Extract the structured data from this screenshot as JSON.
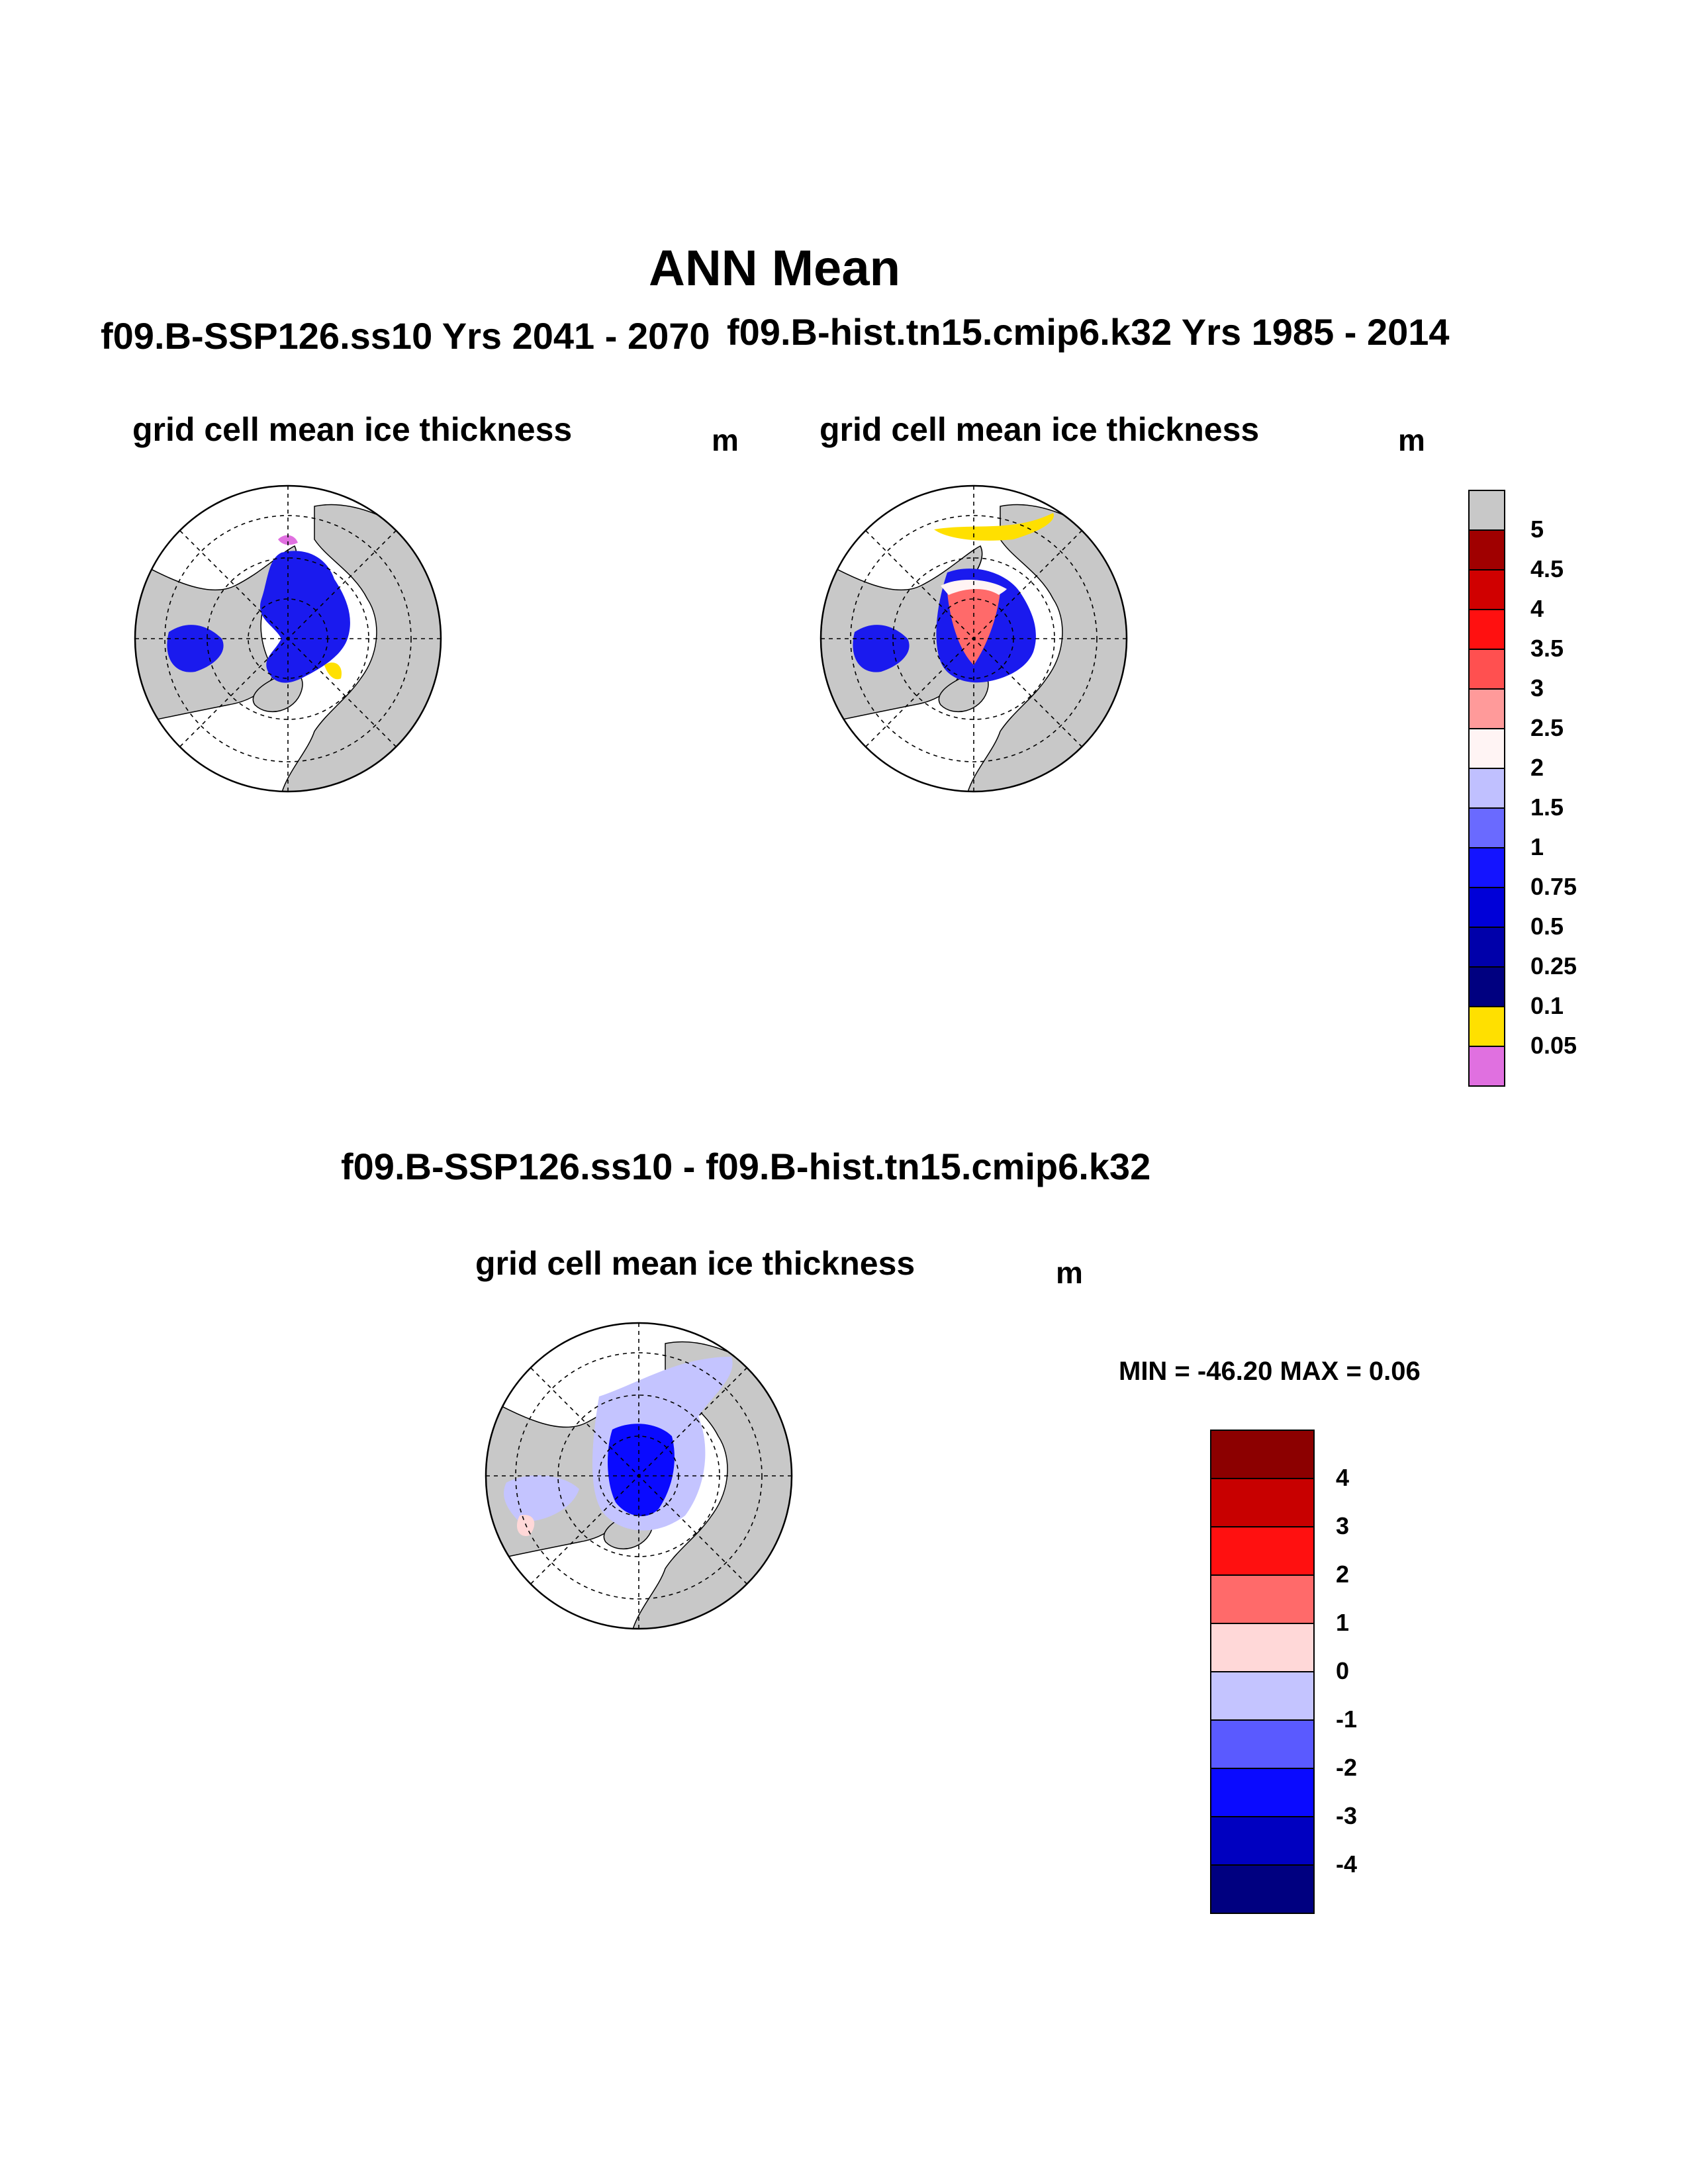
{
  "figure": {
    "title": "ANN Mean",
    "panels": [
      {
        "case": "f09.B-SSP126.ss10  Yrs 2041 - 2070",
        "variable": "grid cell mean ice thickness",
        "units": "m"
      },
      {
        "case": "f09.B-hist.tn15.cmip6.k32  Yrs 1985 - 2014",
        "variable": "grid cell mean ice thickness",
        "units": "m"
      },
      {
        "case": "f09.B-SSP126.ss10 - f09.B-hist.tn15.cmip6.k32",
        "variable": "grid cell mean ice thickness",
        "units": "m",
        "minmax": "MIN = -46.20 MAX =   0.06"
      }
    ]
  },
  "colorbars": {
    "top": {
      "labels": [
        "5",
        "4.5",
        "4",
        "3.5",
        "3",
        "2.5",
        "2",
        "1.5",
        "1",
        "0.75",
        "0.5",
        "0.25",
        "0.1",
        "0.05"
      ],
      "colors": [
        "#c8c8c8",
        "#a00000",
        "#d00000",
        "#ff1010",
        "#ff5050",
        "#ff9a9a",
        "#fff4f4",
        "#c0c0ff",
        "#6a6aff",
        "#1414ff",
        "#0000d8",
        "#0000aa",
        "#000080",
        "#ffe000",
        "#e070e0"
      ]
    },
    "bottom": {
      "labels": [
        "4",
        "3",
        "2",
        "1",
        "0",
        "-1",
        "-2",
        "-3",
        "-4"
      ],
      "colors": [
        "#8c0000",
        "#c80000",
        "#ff1010",
        "#ff6a6a",
        "#ffd8d8",
        "#c4c4ff",
        "#5a5aff",
        "#0a0aff",
        "#0000c0",
        "#000080"
      ]
    }
  },
  "map_colors": {
    "land": "#c8c8c8",
    "ocean": "#ffffff",
    "thin_ice_low": "#e070e0",
    "thin_ice_mid": "#ffe000"
  }
}
